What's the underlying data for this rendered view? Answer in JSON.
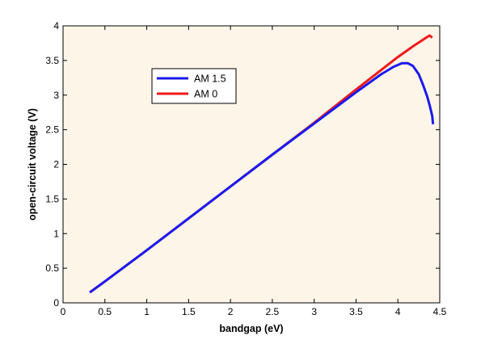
{
  "chart_data": {
    "type": "line",
    "title": "",
    "xlabel": "bandgap (eV)",
    "ylabel": "open-circuit voltage (V)",
    "xlim": [
      0,
      4.5
    ],
    "ylim": [
      0,
      4
    ],
    "xticks": [
      0,
      0.5,
      1,
      1.5,
      2,
      2.5,
      3,
      3.5,
      4,
      4.5
    ],
    "xtick_labels": [
      "0",
      "0.5",
      "1",
      "1.5",
      "2",
      "2.5",
      "3",
      "3.5",
      "4",
      "4.5"
    ],
    "yticks": [
      0,
      0.5,
      1,
      1.5,
      2,
      2.5,
      3,
      3.5,
      4
    ],
    "ytick_labels": [
      "0",
      "0.5",
      "1",
      "1.5",
      "2",
      "2.5",
      "3",
      "3.5",
      "4"
    ],
    "grid": false,
    "legend_position": "upper-left",
    "plot_background": "#fdf5e8",
    "series": [
      {
        "name": "AM 1.5",
        "color": "#1a1aee",
        "x": [
          0.32,
          0.5,
          1.0,
          1.5,
          2.0,
          2.5,
          3.0,
          3.5,
          3.8,
          3.95,
          4.05,
          4.12,
          4.18,
          4.25,
          4.3,
          4.35,
          4.38,
          4.41,
          4.42
        ],
        "y": [
          0.15,
          0.31,
          0.76,
          1.22,
          1.68,
          2.14,
          2.59,
          3.04,
          3.3,
          3.41,
          3.46,
          3.46,
          3.42,
          3.3,
          3.15,
          2.98,
          2.85,
          2.7,
          2.58
        ]
      },
      {
        "name": "AM 0",
        "color": "#ee1a1a",
        "x": [
          0.32,
          0.5,
          1.0,
          1.5,
          2.0,
          2.5,
          3.0,
          3.5,
          4.0,
          4.2,
          4.3,
          4.35,
          4.38,
          4.41
        ],
        "y": [
          0.15,
          0.31,
          0.76,
          1.22,
          1.68,
          2.14,
          2.6,
          3.08,
          3.55,
          3.72,
          3.8,
          3.84,
          3.86,
          3.83
        ]
      }
    ]
  }
}
